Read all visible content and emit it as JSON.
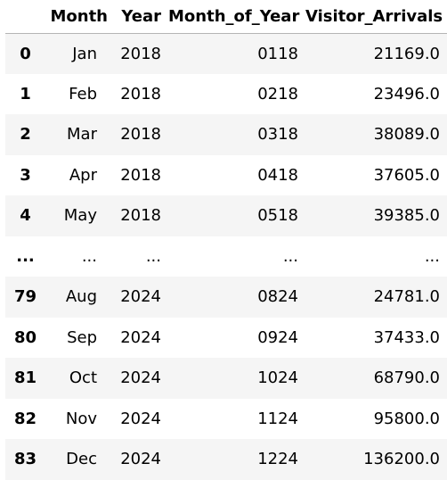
{
  "table": {
    "columns": [
      "",
      "Month",
      "Year",
      "Month_of_Year",
      "Visitor_Arrivals"
    ],
    "rows": [
      {
        "index": "0",
        "cells": [
          "Jan",
          "2018",
          "0118",
          "21169.0"
        ]
      },
      {
        "index": "1",
        "cells": [
          "Feb",
          "2018",
          "0218",
          "23496.0"
        ]
      },
      {
        "index": "2",
        "cells": [
          "Mar",
          "2018",
          "0318",
          "38089.0"
        ]
      },
      {
        "index": "3",
        "cells": [
          "Apr",
          "2018",
          "0418",
          "37605.0"
        ]
      },
      {
        "index": "4",
        "cells": [
          "May",
          "2018",
          "0518",
          "39385.0"
        ]
      },
      {
        "index": "...",
        "cells": [
          "...",
          "...",
          "...",
          "..."
        ]
      },
      {
        "index": "79",
        "cells": [
          "Aug",
          "2024",
          "0824",
          "24781.0"
        ]
      },
      {
        "index": "80",
        "cells": [
          "Sep",
          "2024",
          "0924",
          "37433.0"
        ]
      },
      {
        "index": "81",
        "cells": [
          "Oct",
          "2024",
          "1024",
          "68790.0"
        ]
      },
      {
        "index": "82",
        "cells": [
          "Nov",
          "2024",
          "1124",
          "95800.0"
        ]
      },
      {
        "index": "83",
        "cells": [
          "Dec",
          "2024",
          "1224",
          "136200.0"
        ]
      }
    ]
  },
  "colors": {
    "stripe": "#f5f5f5",
    "header_border": "#b5b5b5"
  }
}
